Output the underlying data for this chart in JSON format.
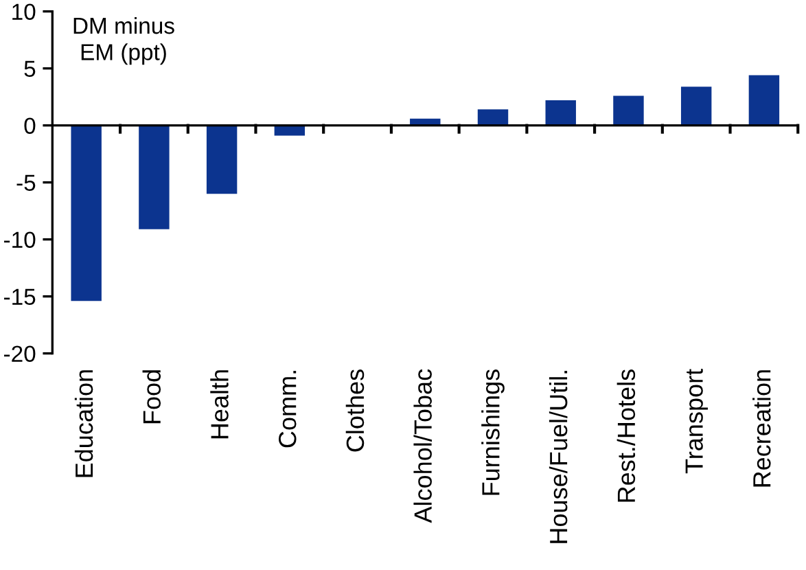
{
  "chart_data": {
    "type": "bar",
    "ylabel": "DM minus\nEM (ppt)",
    "categories": [
      "Education",
      "Food",
      "Health",
      "Comm.",
      "Clothes",
      "Alcohol/Tobac",
      "Furnishings",
      "House/Fuel/Util.",
      "Rest./Hotels",
      "Transport",
      "Recreation"
    ],
    "values": [
      -15.4,
      -9.1,
      -6.0,
      -0.9,
      0,
      0.6,
      1.4,
      2.2,
      2.6,
      3.4,
      4.4
    ],
    "color": "#0c348f",
    "ylim": [
      -20,
      10
    ],
    "yticks": [
      -20,
      -15,
      -10,
      -5,
      0,
      5,
      10
    ]
  }
}
